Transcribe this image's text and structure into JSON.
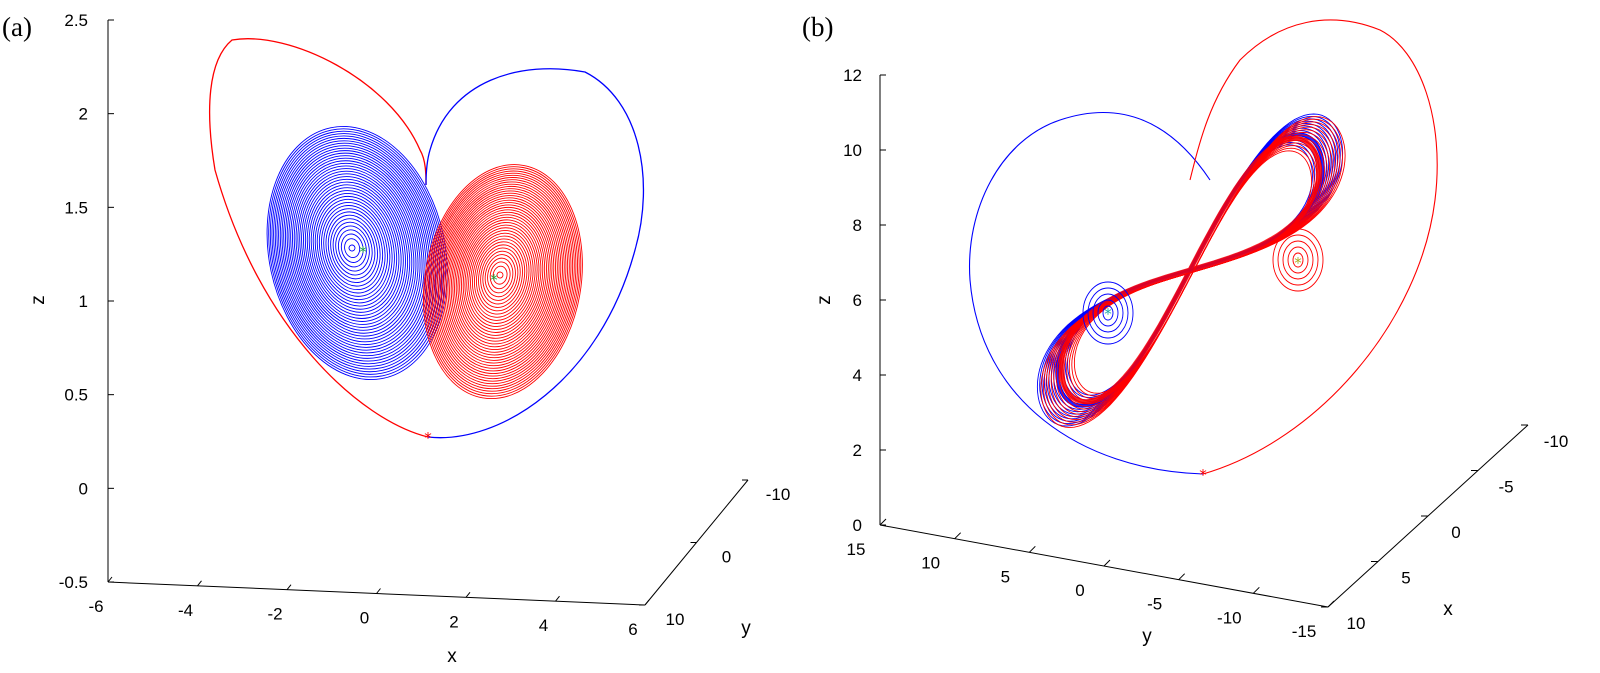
{
  "figure": {
    "description_labels": [
      "(a)",
      "(b)"
    ]
  },
  "chart_data": [
    {
      "panel_label": "(a)",
      "type": "line",
      "projection": "3d",
      "title": "",
      "xlabel": "x",
      "ylabel": "y",
      "zlabel": "z",
      "xlim": [
        -6,
        6
      ],
      "ylim": [
        10,
        -10
      ],
      "zlim": [
        -0.5,
        2.5
      ],
      "x_ticks": [
        "-6",
        "-4",
        "-2",
        "0",
        "2",
        "4",
        "6"
      ],
      "y_ticks": [
        "10",
        "0",
        "-10"
      ],
      "z_ticks": [
        "-0.5",
        "0",
        "0.5",
        "1",
        "1.5",
        "2",
        "2.5"
      ],
      "x_tick_values": [
        -6,
        -4,
        -2,
        0,
        2,
        4,
        6
      ],
      "y_tick_values": [
        10,
        0,
        -10
      ],
      "z_tick_values": [
        -0.5,
        0,
        0.5,
        1,
        1.5,
        2,
        2.5
      ],
      "series": [
        {
          "name": "trajectory (red)",
          "color": "#ff0000",
          "approx_center_xz": [
            2.8,
            1.1
          ],
          "spiral_turns": 40,
          "big_loop_peak_z": 2.4
        },
        {
          "name": "trajectory (blue)",
          "color": "#0000ff",
          "approx_center_xz": [
            -0.3,
            1.25
          ],
          "spiral_turns": 40,
          "big_loop_peak_z": 2.22
        }
      ],
      "markers": [
        {
          "name": "initial point",
          "symbol": "*",
          "color": "#ff0000",
          "x": 1.3,
          "z": 0.27
        },
        {
          "name": "equilibrium left",
          "symbol": "*",
          "color": "#22aa44",
          "x": -0.3,
          "z": 1.26
        },
        {
          "name": "equilibrium right",
          "symbol": "*",
          "color": "#22aa44",
          "x": 2.8,
          "z": 1.11
        }
      ]
    },
    {
      "panel_label": "(b)",
      "type": "line",
      "projection": "3d",
      "title": "",
      "xlabel": "x",
      "ylabel": "y",
      "zlabel": "z",
      "xlim": [
        10,
        -10
      ],
      "ylim": [
        15,
        -15
      ],
      "zlim": [
        0,
        12
      ],
      "x_ticks": [
        "-10",
        "-5",
        "0",
        "5",
        "10"
      ],
      "y_ticks": [
        "15",
        "10",
        "5",
        "0",
        "-5",
        "-10",
        "-15"
      ],
      "z_ticks": [
        "0",
        "2",
        "4",
        "6",
        "8",
        "10",
        "12"
      ],
      "x_tick_values": [
        -10,
        -5,
        0,
        5,
        10
      ],
      "y_tick_values": [
        15,
        10,
        5,
        0,
        -5,
        -10,
        -15
      ],
      "z_tick_values": [
        0,
        2,
        4,
        6,
        8,
        10,
        12
      ],
      "series": [
        {
          "name": "trajectory (blue)",
          "color": "#0000ff",
          "shape": "figure-eight attractor"
        },
        {
          "name": "trajectory (red)",
          "color": "#ff0000",
          "shape": "figure-eight attractor"
        }
      ],
      "markers": [
        {
          "name": "initial point",
          "symbol": "*",
          "color": "#ff0000",
          "z": 1.3
        },
        {
          "name": "equilibrium left",
          "symbol": "*",
          "color": "#22aaaa",
          "z": 5.7
        },
        {
          "name": "equilibrium right",
          "symbol": "*",
          "color": "#aaaa22",
          "z": 7.0
        }
      ]
    }
  ]
}
